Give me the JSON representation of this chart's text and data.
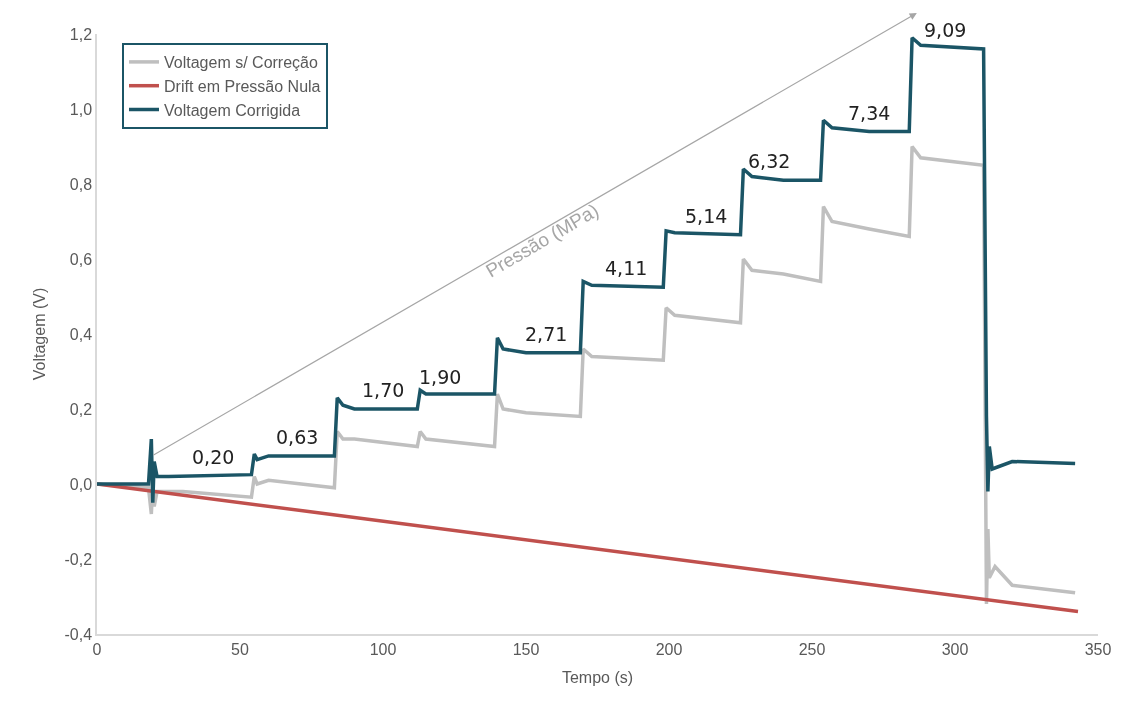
{
  "chart_data": {
    "type": "line",
    "xlabel": "Tempo (s)",
    "ylabel": "Voltagem (V)",
    "xlim": [
      0,
      350
    ],
    "xticks": [
      0,
      50,
      100,
      150,
      200,
      250,
      300,
      350
    ],
    "ylim": [
      -0.4,
      1.2
    ],
    "yticks": [
      {
        "value": -0.4,
        "label": "-0,4"
      },
      {
        "value": -0.2,
        "label": "-0,2"
      },
      {
        "value": 0,
        "label": "0,0"
      },
      {
        "value": 0.2,
        "label": "0,2"
      },
      {
        "value": 0.4,
        "label": "0,4"
      },
      {
        "value": 0.6,
        "label": "0,6"
      },
      {
        "value": 0.8,
        "label": "0,8"
      },
      {
        "value": 1.0,
        "label": "1,0"
      },
      {
        "value": 1.2,
        "label": "1,2"
      }
    ],
    "grid": false,
    "legend": "top left",
    "marker": "none",
    "line_style": "solid",
    "series": [
      {
        "name": "Voltagem s/ Correção",
        "color": "#bfbfbf",
        "x": [
          0,
          18,
          19,
          19.5,
          20,
          21,
          25,
          30,
          54,
          55,
          56,
          60,
          83,
          84,
          86,
          90,
          112,
          113,
          115,
          139,
          140,
          142,
          150,
          169,
          170,
          173,
          198,
          199,
          202,
          225,
          226,
          229,
          240,
          253,
          254,
          257,
          270,
          284,
          285,
          288,
          310,
          311,
          311.5,
          312,
          314,
          320,
          342
        ],
        "values": [
          0,
          -0.01,
          -0.08,
          0.0,
          -0.06,
          -0.02,
          -0.02,
          -0.02,
          -0.035,
          0.02,
          0.0,
          0.01,
          -0.01,
          0.14,
          0.12,
          0.12,
          0.1,
          0.14,
          0.12,
          0.1,
          0.24,
          0.2,
          0.19,
          0.18,
          0.36,
          0.34,
          0.33,
          0.47,
          0.45,
          0.43,
          0.6,
          0.57,
          0.56,
          0.54,
          0.74,
          0.7,
          0.68,
          0.66,
          0.9,
          0.87,
          0.85,
          -0.32,
          -0.12,
          -0.25,
          -0.22,
          -0.27,
          -0.29
        ]
      },
      {
        "name": "Drift em Pressão Nula",
        "color": "#c0504d",
        "x": [
          0,
          343
        ],
        "values": [
          0,
          -0.34
        ]
      },
      {
        "name": "Voltagem Corrigida",
        "color": "#1b5566",
        "x": [
          0,
          18,
          19,
          19.5,
          20,
          21,
          25,
          54,
          55,
          56,
          60,
          83,
          84,
          86,
          90,
          112,
          113,
          115,
          139,
          140,
          142,
          150,
          169,
          170,
          173,
          198,
          199,
          202,
          225,
          226,
          229,
          240,
          253,
          254,
          257,
          270,
          284,
          285,
          288,
          310,
          311,
          311.5,
          312,
          313,
          320,
          342
        ],
        "values": [
          0,
          0.0,
          0.12,
          -0.05,
          0.06,
          0.02,
          0.02,
          0.025,
          0.08,
          0.065,
          0.075,
          0.075,
          0.23,
          0.21,
          0.2,
          0.2,
          0.25,
          0.24,
          0.24,
          0.39,
          0.36,
          0.35,
          0.35,
          0.54,
          0.53,
          0.525,
          0.675,
          0.67,
          0.665,
          0.84,
          0.82,
          0.81,
          0.81,
          0.97,
          0.95,
          0.94,
          0.94,
          1.19,
          1.17,
          1.16,
          0.18,
          -0.02,
          0.1,
          0.04,
          0.06,
          0.055
        ]
      }
    ],
    "annotations": [
      {
        "text": "0,20",
        "x": 40.5,
        "y": 0.022
      },
      {
        "text": "0,63",
        "x": 70,
        "y": 0.075
      },
      {
        "text": "1,70",
        "x": 100,
        "y": 0.2
      },
      {
        "text": "1,90",
        "x": 120,
        "y": 0.235
      },
      {
        "text": "2,71",
        "x": 157,
        "y": 0.35
      },
      {
        "text": "4,11",
        "x": 185,
        "y": 0.525
      },
      {
        "text": "5,14",
        "x": 213,
        "y": 0.665
      },
      {
        "text": "6,32",
        "x": 235,
        "y": 0.81
      },
      {
        "text": "7,34",
        "x": 270,
        "y": 0.94
      },
      {
        "text": "9,09",
        "x": 296.5,
        "y": 1.16
      },
      "Pressão (MPa)"
    ]
  }
}
